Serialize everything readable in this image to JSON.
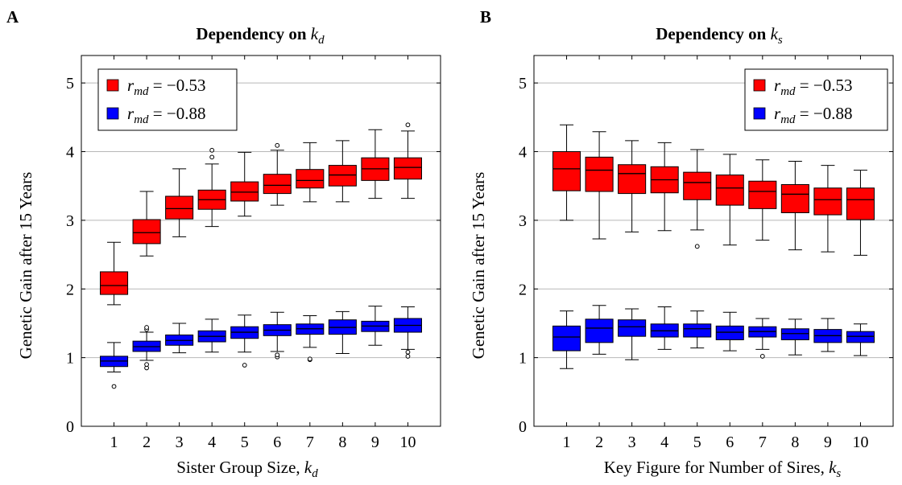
{
  "panels": [
    {
      "letter": "A",
      "title": "Dependency on",
      "title_sym": "k",
      "title_sub": "d",
      "xlabel": "Sister Group Size, ",
      "xlabel_sym": "k",
      "xlabel_sub": "d"
    },
    {
      "letter": "B",
      "title": "Dependency on",
      "title_sym": "k",
      "title_sub": "s",
      "xlabel": "Key Figure for Number of Sires, ",
      "xlabel_sym": "k",
      "xlabel_sub": "s"
    }
  ],
  "ylabel": "Genetic Gain after 15 Years",
  "legend": {
    "entries": [
      {
        "sym": "r",
        "sub": "md",
        "rest": " = −0.53",
        "color": "#ff0000"
      },
      {
        "sym": "r",
        "sub": "md",
        "rest": " = −0.88",
        "color": "#0000ff"
      }
    ]
  },
  "chart_data": [
    {
      "type": "box",
      "title": "Dependency on k_d",
      "xlabel": "Sister Group Size, k_d",
      "ylabel": "Genetic Gain after 15 Years",
      "x": [
        1,
        2,
        3,
        4,
        5,
        6,
        7,
        8,
        9,
        10
      ],
      "xticks": [
        "1",
        "2",
        "3",
        "4",
        "5",
        "6",
        "7",
        "8",
        "9",
        "10"
      ],
      "yticks": [
        "0",
        "1",
        "2",
        "3",
        "4",
        "5"
      ],
      "xlim": [
        0,
        11
      ],
      "ylim": [
        0,
        5.4
      ],
      "grid": "horizontal",
      "legend_position": "top-left",
      "series": [
        {
          "name": "r_md = −0.53",
          "color": "#ff0000",
          "boxes": [
            {
              "min": 1.77,
              "q1": 1.92,
              "median": 2.05,
              "q3": 2.25,
              "max": 2.68,
              "outliers": []
            },
            {
              "min": 2.48,
              "q1": 2.66,
              "median": 2.82,
              "q3": 3.01,
              "max": 3.42,
              "outliers": []
            },
            {
              "min": 2.76,
              "q1": 3.02,
              "median": 3.17,
              "q3": 3.35,
              "max": 3.75,
              "outliers": []
            },
            {
              "min": 2.91,
              "q1": 3.16,
              "median": 3.3,
              "q3": 3.44,
              "max": 3.82,
              "outliers": [
                3.92,
                4.02
              ]
            },
            {
              "min": 3.06,
              "q1": 3.28,
              "median": 3.41,
              "q3": 3.56,
              "max": 3.99,
              "outliers": []
            },
            {
              "min": 3.22,
              "q1": 3.39,
              "median": 3.51,
              "q3": 3.67,
              "max": 4.02,
              "outliers": [
                4.09
              ]
            },
            {
              "min": 3.27,
              "q1": 3.47,
              "median": 3.58,
              "q3": 3.74,
              "max": 4.13,
              "outliers": []
            },
            {
              "min": 3.27,
              "q1": 3.5,
              "median": 3.66,
              "q3": 3.8,
              "max": 4.16,
              "outliers": []
            },
            {
              "min": 3.32,
              "q1": 3.58,
              "median": 3.75,
              "q3": 3.91,
              "max": 4.32,
              "outliers": []
            },
            {
              "min": 3.32,
              "q1": 3.6,
              "median": 3.77,
              "q3": 3.91,
              "max": 4.3,
              "outliers": [
                4.39
              ]
            }
          ]
        },
        {
          "name": "r_md = −0.88",
          "color": "#0000ff",
          "boxes": [
            {
              "min": 0.79,
              "q1": 0.87,
              "median": 0.95,
              "q3": 1.02,
              "max": 1.22,
              "outliers": [
                0.58
              ]
            },
            {
              "min": 0.96,
              "q1": 1.09,
              "median": 1.16,
              "q3": 1.24,
              "max": 1.37,
              "outliers": [
                0.85,
                0.9,
                1.41,
                1.44
              ]
            },
            {
              "min": 1.07,
              "q1": 1.18,
              "median": 1.25,
              "q3": 1.33,
              "max": 1.5,
              "outliers": []
            },
            {
              "min": 1.08,
              "q1": 1.23,
              "median": 1.31,
              "q3": 1.39,
              "max": 1.56,
              "outliers": []
            },
            {
              "min": 1.08,
              "q1": 1.28,
              "median": 1.37,
              "q3": 1.45,
              "max": 1.62,
              "outliers": [
                0.89
              ]
            },
            {
              "min": 1.09,
              "q1": 1.32,
              "median": 1.4,
              "q3": 1.48,
              "max": 1.66,
              "outliers": [
                1.01,
                1.04
              ]
            },
            {
              "min": 1.15,
              "q1": 1.34,
              "median": 1.42,
              "q3": 1.49,
              "max": 1.61,
              "outliers": [
                0.97,
                0.98
              ]
            },
            {
              "min": 1.06,
              "q1": 1.34,
              "median": 1.44,
              "q3": 1.55,
              "max": 1.67,
              "outliers": []
            },
            {
              "min": 1.18,
              "q1": 1.38,
              "median": 1.46,
              "q3": 1.53,
              "max": 1.75,
              "outliers": []
            },
            {
              "min": 1.12,
              "q1": 1.37,
              "median": 1.47,
              "q3": 1.57,
              "max": 1.74,
              "outliers": [
                1.02,
                1.08
              ]
            }
          ]
        }
      ]
    },
    {
      "type": "box",
      "title": "Dependency on k_s",
      "xlabel": "Key Figure for Number of Sires, k_s",
      "ylabel": "Genetic Gain after 15 Years",
      "x": [
        1,
        2,
        3,
        4,
        5,
        6,
        7,
        8,
        9,
        10
      ],
      "xticks": [
        "1",
        "2",
        "3",
        "4",
        "5",
        "6",
        "7",
        "8",
        "9",
        "10"
      ],
      "yticks": [
        "0",
        "1",
        "2",
        "3",
        "4",
        "5"
      ],
      "xlim": [
        0,
        11
      ],
      "ylim": [
        0,
        5.4
      ],
      "grid": "horizontal",
      "legend_position": "top-right",
      "series": [
        {
          "name": "r_md = −0.53",
          "color": "#ff0000",
          "boxes": [
            {
              "min": 3.0,
              "q1": 3.43,
              "median": 3.75,
              "q3": 4.0,
              "max": 4.39,
              "outliers": []
            },
            {
              "min": 2.73,
              "q1": 3.42,
              "median": 3.73,
              "q3": 3.92,
              "max": 4.29,
              "outliers": []
            },
            {
              "min": 2.83,
              "q1": 3.39,
              "median": 3.68,
              "q3": 3.81,
              "max": 4.16,
              "outliers": []
            },
            {
              "min": 2.85,
              "q1": 3.4,
              "median": 3.59,
              "q3": 3.78,
              "max": 4.13,
              "outliers": []
            },
            {
              "min": 2.86,
              "q1": 3.3,
              "median": 3.55,
              "q3": 3.7,
              "max": 4.03,
              "outliers": [
                2.62
              ]
            },
            {
              "min": 2.64,
              "q1": 3.22,
              "median": 3.47,
              "q3": 3.66,
              "max": 3.96,
              "outliers": []
            },
            {
              "min": 2.71,
              "q1": 3.17,
              "median": 3.42,
              "q3": 3.57,
              "max": 3.88,
              "outliers": []
            },
            {
              "min": 2.57,
              "q1": 3.11,
              "median": 3.38,
              "q3": 3.52,
              "max": 3.86,
              "outliers": []
            },
            {
              "min": 2.54,
              "q1": 3.08,
              "median": 3.3,
              "q3": 3.47,
              "max": 3.8,
              "outliers": []
            },
            {
              "min": 2.49,
              "q1": 3.01,
              "median": 3.3,
              "q3": 3.47,
              "max": 3.73,
              "outliers": []
            }
          ]
        },
        {
          "name": "r_md = −0.88",
          "color": "#0000ff",
          "boxes": [
            {
              "min": 0.84,
              "q1": 1.1,
              "median": 1.3,
              "q3": 1.46,
              "max": 1.68,
              "outliers": []
            },
            {
              "min": 1.05,
              "q1": 1.22,
              "median": 1.43,
              "q3": 1.56,
              "max": 1.76,
              "outliers": []
            },
            {
              "min": 0.97,
              "q1": 1.31,
              "median": 1.45,
              "q3": 1.55,
              "max": 1.71,
              "outliers": []
            },
            {
              "min": 1.12,
              "q1": 1.3,
              "median": 1.39,
              "q3": 1.49,
              "max": 1.74,
              "outliers": []
            },
            {
              "min": 1.14,
              "q1": 1.3,
              "median": 1.42,
              "q3": 1.49,
              "max": 1.68,
              "outliers": []
            },
            {
              "min": 1.1,
              "q1": 1.26,
              "median": 1.37,
              "q3": 1.46,
              "max": 1.66,
              "outliers": []
            },
            {
              "min": 1.12,
              "q1": 1.3,
              "median": 1.38,
              "q3": 1.45,
              "max": 1.57,
              "outliers": [
                1.02
              ]
            },
            {
              "min": 1.04,
              "q1": 1.26,
              "median": 1.35,
              "q3": 1.42,
              "max": 1.56,
              "outliers": []
            },
            {
              "min": 1.09,
              "q1": 1.22,
              "median": 1.32,
              "q3": 1.41,
              "max": 1.57,
              "outliers": []
            },
            {
              "min": 1.03,
              "q1": 1.22,
              "median": 1.31,
              "q3": 1.38,
              "max": 1.49,
              "outliers": []
            }
          ]
        }
      ]
    }
  ]
}
